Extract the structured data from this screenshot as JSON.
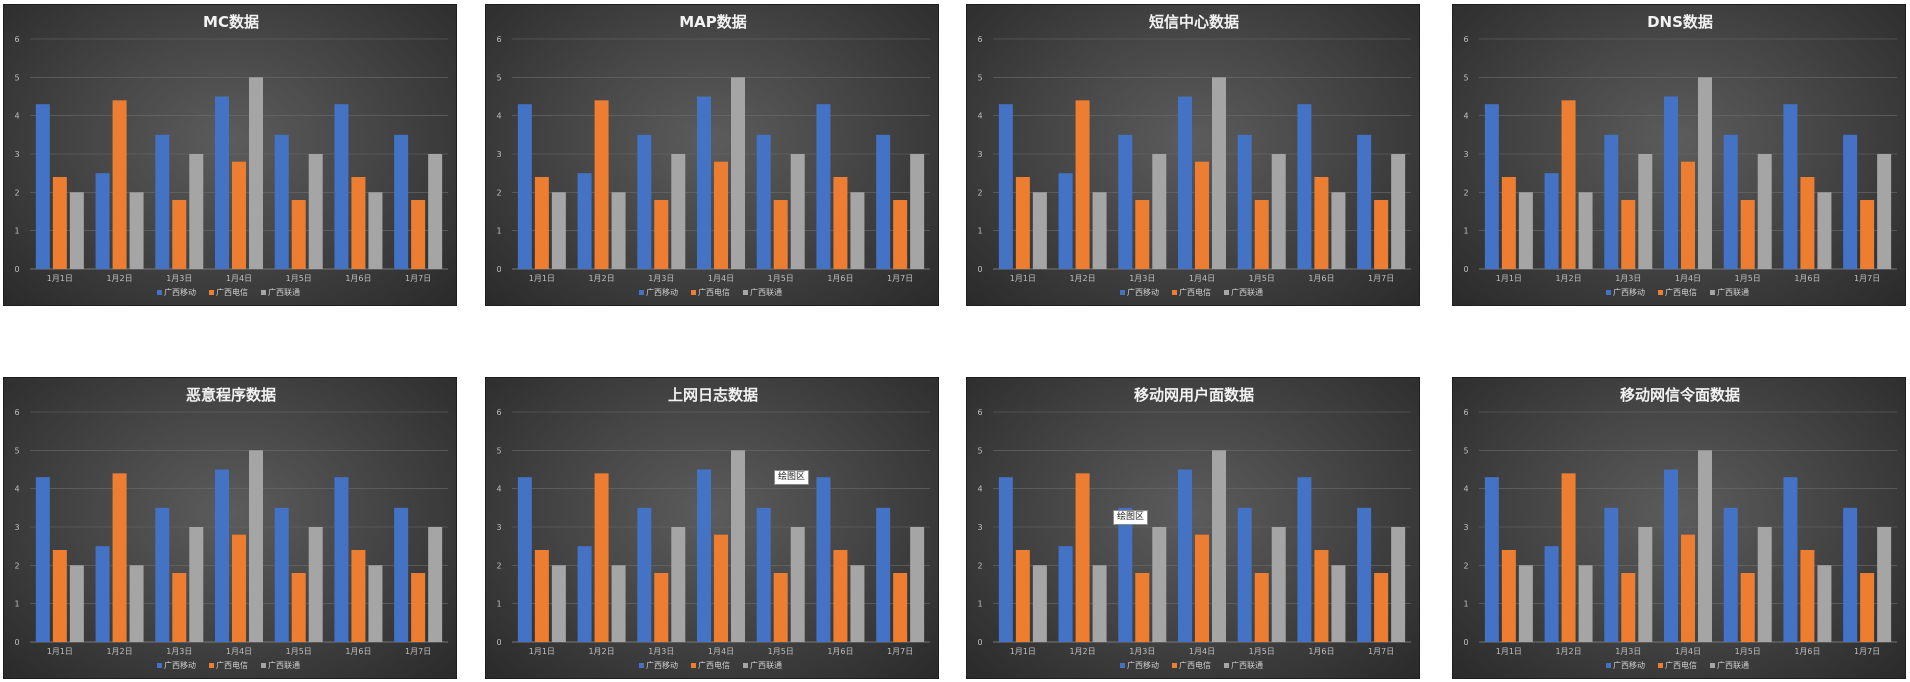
{
  "legend_colors": [
    "#4472c4",
    "#ed7d31",
    "#a5a5a5"
  ],
  "chart_data": [
    {
      "type": "bar",
      "title": "MC数据",
      "categories": [
        "1月1日",
        "1月2日",
        "1月3日",
        "1月4日",
        "1月5日",
        "1月6日",
        "1月7日"
      ],
      "series": [
        {
          "name": "广西移动",
          "values": [
            4.3,
            2.5,
            3.5,
            4.5,
            3.5,
            4.3,
            3.5
          ]
        },
        {
          "name": "广西电信",
          "values": [
            2.4,
            4.4,
            1.8,
            2.8,
            1.8,
            2.4,
            1.8
          ]
        },
        {
          "name": "广西联通",
          "values": [
            2,
            2,
            3,
            5,
            3,
            2,
            3
          ]
        }
      ],
      "ylim": [
        0,
        6
      ],
      "yticks": [
        0,
        1,
        2,
        3,
        4,
        5,
        6
      ],
      "grid": true,
      "legend": "bottom"
    },
    {
      "type": "bar",
      "title": "MAP数据",
      "categories": [
        "1月1日",
        "1月2日",
        "1月3日",
        "1月4日",
        "1月5日",
        "1月6日",
        "1月7日"
      ],
      "series": [
        {
          "name": "广西移动",
          "values": [
            4.3,
            2.5,
            3.5,
            4.5,
            3.5,
            4.3,
            3.5
          ]
        },
        {
          "name": "广西电信",
          "values": [
            2.4,
            4.4,
            1.8,
            2.8,
            1.8,
            2.4,
            1.8
          ]
        },
        {
          "name": "广西联通",
          "values": [
            2,
            2,
            3,
            5,
            3,
            2,
            3
          ]
        }
      ],
      "ylim": [
        0,
        6
      ],
      "yticks": [
        0,
        1,
        2,
        3,
        4,
        5,
        6
      ],
      "grid": true,
      "legend": "bottom"
    },
    {
      "type": "bar",
      "title": "短信中心数据",
      "categories": [
        "1月1日",
        "1月2日",
        "1月3日",
        "1月4日",
        "1月5日",
        "1月6日",
        "1月7日"
      ],
      "series": [
        {
          "name": "广西移动",
          "values": [
            4.3,
            2.5,
            3.5,
            4.5,
            3.5,
            4.3,
            3.5
          ]
        },
        {
          "name": "广西电信",
          "values": [
            2.4,
            4.4,
            1.8,
            2.8,
            1.8,
            2.4,
            1.8
          ]
        },
        {
          "name": "广西联通",
          "values": [
            2,
            2,
            3,
            5,
            3,
            2,
            3
          ]
        }
      ],
      "ylim": [
        0,
        6
      ],
      "yticks": [
        0,
        1,
        2,
        3,
        4,
        5,
        6
      ],
      "grid": true,
      "legend": "bottom"
    },
    {
      "type": "bar",
      "title": "DNS数据",
      "categories": [
        "1月1日",
        "1月2日",
        "1月3日",
        "1月4日",
        "1月5日",
        "1月6日",
        "1月7日"
      ],
      "series": [
        {
          "name": "广西移动",
          "values": [
            4.3,
            2.5,
            3.5,
            4.5,
            3.5,
            4.3,
            3.5
          ]
        },
        {
          "name": "广西电信",
          "values": [
            2.4,
            4.4,
            1.8,
            2.8,
            1.8,
            2.4,
            1.8
          ]
        },
        {
          "name": "广西联通",
          "values": [
            2,
            2,
            3,
            5,
            3,
            2,
            3
          ]
        }
      ],
      "ylim": [
        0,
        6
      ],
      "yticks": [
        0,
        1,
        2,
        3,
        4,
        5,
        6
      ],
      "grid": true,
      "legend": "bottom"
    },
    {
      "type": "bar",
      "title": "恶意程序数据",
      "categories": [
        "1月1日",
        "1月2日",
        "1月3日",
        "1月4日",
        "1月5日",
        "1月6日",
        "1月7日"
      ],
      "series": [
        {
          "name": "广西移动",
          "values": [
            4.3,
            2.5,
            3.5,
            4.5,
            3.5,
            4.3,
            3.5
          ]
        },
        {
          "name": "广西电信",
          "values": [
            2.4,
            4.4,
            1.8,
            2.8,
            1.8,
            2.4,
            1.8
          ]
        },
        {
          "name": "广西联通",
          "values": [
            2,
            2,
            3,
            5,
            3,
            2,
            3
          ]
        }
      ],
      "ylim": [
        0,
        6
      ],
      "yticks": [
        0,
        1,
        2,
        3,
        4,
        5,
        6
      ],
      "grid": true,
      "legend": "bottom"
    },
    {
      "type": "bar",
      "title": "上网日志数据",
      "categories": [
        "1月1日",
        "1月2日",
        "1月3日",
        "1月4日",
        "1月5日",
        "1月6日",
        "1月7日"
      ],
      "series": [
        {
          "name": "广西移动",
          "values": [
            4.3,
            2.5,
            3.5,
            4.5,
            3.5,
            4.3,
            3.5
          ]
        },
        {
          "name": "广西电信",
          "values": [
            2.4,
            4.4,
            1.8,
            2.8,
            1.8,
            2.4,
            1.8
          ]
        },
        {
          "name": "广西联通",
          "values": [
            2,
            2,
            3,
            5,
            3,
            2,
            3
          ]
        }
      ],
      "ylim": [
        0,
        6
      ],
      "yticks": [
        0,
        1,
        2,
        3,
        4,
        5,
        6
      ],
      "grid": true,
      "legend": "bottom",
      "tooltip": "绘图区"
    },
    {
      "type": "bar",
      "title": "移动网用户面数据",
      "categories": [
        "1月1日",
        "1月2日",
        "1月3日",
        "1月4日",
        "1月5日",
        "1月6日",
        "1月7日"
      ],
      "series": [
        {
          "name": "广西移动",
          "values": [
            4.3,
            2.5,
            3.5,
            4.5,
            3.5,
            4.3,
            3.5
          ]
        },
        {
          "name": "广西电信",
          "values": [
            2.4,
            4.4,
            1.8,
            2.8,
            1.8,
            2.4,
            1.8
          ]
        },
        {
          "name": "广西联通",
          "values": [
            2,
            2,
            3,
            5,
            3,
            2,
            3
          ]
        }
      ],
      "ylim": [
        0,
        6
      ],
      "yticks": [
        0,
        1,
        2,
        3,
        4,
        5,
        6
      ],
      "grid": true,
      "legend": "bottom",
      "tooltip": "绘图区"
    },
    {
      "type": "bar",
      "title": "移动网信令面数据",
      "categories": [
        "1月1日",
        "1月2日",
        "1月3日",
        "1月4日",
        "1月5日",
        "1月6日",
        "1月7日"
      ],
      "series": [
        {
          "name": "广西移动",
          "values": [
            4.3,
            2.5,
            3.5,
            4.5,
            3.5,
            4.3,
            3.5
          ]
        },
        {
          "name": "广西电信",
          "values": [
            2.4,
            4.4,
            1.8,
            2.8,
            1.8,
            2.4,
            1.8
          ]
        },
        {
          "name": "广西联通",
          "values": [
            2,
            2,
            3,
            5,
            3,
            2,
            3
          ]
        }
      ],
      "ylim": [
        0,
        6
      ],
      "yticks": [
        0,
        1,
        2,
        3,
        4,
        5,
        6
      ],
      "grid": true,
      "legend": "bottom"
    }
  ]
}
